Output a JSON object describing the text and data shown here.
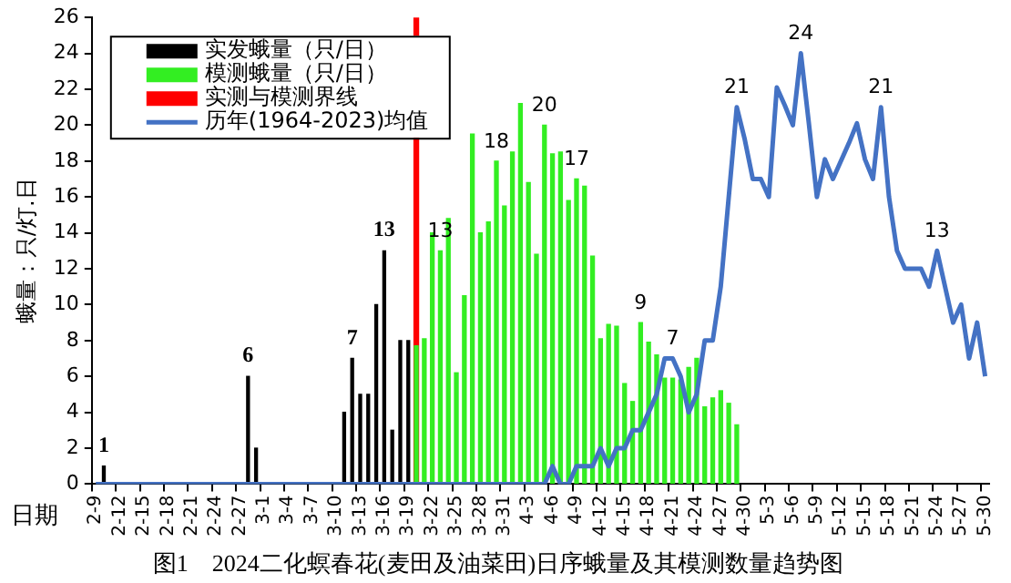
{
  "chart_data": {
    "type": "bar",
    "title": "图1　2024二化螟春花(麦田及油菜田)日序蛾量及其模测数量趋势图",
    "xlabel": "日期",
    "ylabel": "蛾量：只/灯.日",
    "categories": [
      "2-9",
      null,
      null,
      "2-12",
      null,
      null,
      "2-15",
      null,
      null,
      "2-18",
      null,
      null,
      "2-21",
      null,
      null,
      "2-24",
      null,
      null,
      "2-27",
      null,
      null,
      "3-1",
      null,
      null,
      "3-4",
      null,
      null,
      "3-7",
      null,
      null,
      "3-10",
      null,
      null,
      "3-13",
      null,
      null,
      "3-16",
      null,
      null,
      "3-19",
      null,
      null,
      "3-22",
      null,
      null,
      "3-25",
      null,
      null,
      "3-28",
      null,
      null,
      "3-31",
      null,
      null,
      "4-3",
      null,
      null,
      "4-6",
      null,
      null,
      "4-9",
      null,
      null,
      "4-12",
      null,
      null,
      "4-15",
      null,
      null,
      "4-18",
      null,
      null,
      "4-21",
      null,
      null,
      "4-24",
      null,
      null,
      "4-27",
      null,
      null,
      "4-30",
      null,
      null,
      "5-3",
      null,
      null,
      "5-6",
      null,
      null,
      "5-9",
      null,
      null,
      "5-12",
      null,
      null,
      "5-15",
      null,
      null,
      "5-18",
      null,
      null,
      "5-21",
      null,
      null,
      "5-24",
      null,
      null,
      "5-27",
      null,
      null,
      "5-30"
    ],
    "series": [
      {
        "name": "实发蛾量（只/日）",
        "color": "#000000",
        "values": [
          null,
          1,
          null,
          null,
          null,
          null,
          null,
          null,
          null,
          null,
          null,
          null,
          null,
          null,
          null,
          null,
          null,
          null,
          null,
          6,
          2,
          null,
          null,
          null,
          null,
          null,
          null,
          null,
          null,
          null,
          null,
          4,
          7,
          5,
          5,
          10,
          13,
          3,
          8,
          8,
          null,
          null,
          null,
          null,
          null,
          null,
          null,
          null,
          null,
          null,
          null,
          null,
          null,
          null,
          null,
          null,
          null,
          null,
          null,
          null,
          null,
          null,
          null,
          null,
          null,
          null,
          null,
          null,
          null,
          null,
          null,
          null,
          null,
          null,
          null,
          null,
          null,
          null,
          null,
          null,
          null,
          null,
          null,
          null,
          null,
          null,
          null,
          null,
          null,
          null,
          null,
          null,
          null,
          null,
          null,
          null,
          null,
          null,
          null,
          null,
          null,
          null,
          null,
          null,
          null,
          null,
          null,
          null,
          null,
          null,
          null,
          null
        ],
        "value_labels": [
          null,
          "1",
          null,
          null,
          null,
          null,
          null,
          null,
          null,
          null,
          null,
          null,
          null,
          null,
          null,
          null,
          null,
          null,
          null,
          "6",
          null,
          null,
          null,
          null,
          null,
          null,
          null,
          null,
          null,
          null,
          null,
          null,
          "7",
          null,
          null,
          null,
          "13",
          null,
          null,
          null,
          null,
          null,
          null,
          null,
          null,
          null,
          null,
          null,
          null,
          null,
          null,
          null,
          null,
          null,
          null,
          null,
          null,
          null,
          null,
          null,
          null,
          null,
          null,
          null,
          null,
          null,
          null,
          null,
          null,
          null,
          null,
          null,
          null,
          null,
          null,
          null,
          null,
          null,
          null,
          null,
          null,
          null,
          null,
          null,
          null,
          null,
          null,
          null,
          null,
          null,
          null,
          null,
          null,
          null,
          null,
          null,
          null,
          null,
          null,
          null,
          null,
          null,
          null,
          null,
          null,
          null,
          null,
          null,
          null,
          null,
          null,
          null
        ]
      },
      {
        "name": "模测蛾量（只/日）",
        "color": "#33ee22",
        "values": [
          null,
          null,
          null,
          null,
          null,
          null,
          null,
          null,
          null,
          null,
          null,
          null,
          null,
          null,
          null,
          null,
          null,
          null,
          null,
          null,
          null,
          null,
          null,
          null,
          null,
          null,
          null,
          null,
          null,
          null,
          null,
          null,
          null,
          null,
          null,
          null,
          null,
          null,
          null,
          null,
          7.7,
          8.1,
          14,
          13,
          14.8,
          6.2,
          10.5,
          19.5,
          14,
          14.6,
          18,
          15.5,
          18.5,
          21.2,
          16.8,
          12.8,
          20,
          18.4,
          18.5,
          15.8,
          17,
          16.6,
          12.7,
          8.1,
          8.9,
          8.8,
          5.6,
          4.6,
          9,
          7.9,
          7.2,
          5.9,
          5.9,
          5.8,
          6.5,
          7,
          4.3,
          4.8,
          5.2,
          4.5,
          3.3,
          null,
          null,
          null,
          null,
          null,
          null,
          null,
          null,
          null,
          null,
          null,
          null,
          null,
          null,
          null,
          null,
          null,
          null,
          null,
          null,
          null,
          null,
          null,
          null,
          null,
          null,
          null,
          null,
          null,
          null,
          null
        ],
        "value_labels": [
          null,
          null,
          null,
          null,
          null,
          null,
          null,
          null,
          null,
          null,
          null,
          null,
          null,
          null,
          null,
          null,
          null,
          null,
          null,
          null,
          null,
          null,
          null,
          null,
          null,
          null,
          null,
          null,
          null,
          null,
          null,
          null,
          null,
          null,
          null,
          null,
          null,
          null,
          null,
          null,
          null,
          null,
          null,
          "13",
          null,
          null,
          null,
          null,
          null,
          null,
          "18",
          null,
          null,
          null,
          null,
          null,
          "20",
          null,
          null,
          null,
          "17",
          null,
          null,
          null,
          null,
          null,
          null,
          null,
          "9",
          null,
          null,
          null,
          null,
          null,
          null,
          null,
          null,
          null,
          null,
          null,
          null,
          null,
          null,
          null,
          null,
          null,
          null,
          null,
          null,
          null,
          null,
          null,
          null,
          null,
          null,
          null,
          null,
          null,
          null,
          null,
          null,
          null,
          null,
          null,
          null,
          null,
          null,
          null,
          null,
          null,
          null,
          null
        ]
      },
      {
        "name": "实测与模测界线",
        "color": "#ff0000",
        "values": [
          null,
          null,
          null,
          null,
          null,
          null,
          null,
          null,
          null,
          null,
          null,
          null,
          null,
          null,
          null,
          null,
          null,
          null,
          null,
          null,
          null,
          null,
          null,
          null,
          null,
          null,
          null,
          null,
          null,
          null,
          null,
          null,
          null,
          null,
          null,
          null,
          null,
          null,
          null,
          null,
          26,
          null,
          null,
          null,
          null,
          null,
          null,
          null,
          null,
          null,
          null,
          null,
          null,
          null,
          null,
          null,
          null,
          null,
          null,
          null,
          null,
          null,
          null,
          null,
          null,
          null,
          null,
          null,
          null,
          null,
          null,
          null,
          null,
          null,
          null,
          null,
          null,
          null,
          null,
          null,
          null,
          null,
          null,
          null,
          null,
          null,
          null,
          null,
          null,
          null,
          null,
          null,
          null,
          null,
          null,
          null,
          null,
          null,
          null,
          null,
          null,
          null,
          null,
          null,
          null,
          null,
          null,
          null,
          null,
          null,
          null,
          null
        ]
      },
      {
        "name": "历年(1964-2023)均值",
        "type": "line",
        "color": "#4472c4",
        "values": [
          0,
          0,
          0,
          0,
          0,
          0,
          0,
          0,
          0,
          0,
          0,
          0,
          0,
          0,
          0,
          0,
          0,
          0,
          0,
          0,
          0,
          0,
          0,
          0,
          0,
          0,
          0,
          0,
          0,
          0,
          0,
          0,
          0,
          0,
          0,
          0,
          0,
          0,
          0,
          0,
          0,
          0,
          0,
          0,
          0,
          0,
          0,
          0,
          0,
          0,
          0,
          0,
          0,
          0,
          0,
          0,
          0,
          1,
          0,
          0,
          1,
          1,
          1,
          2,
          1,
          2,
          2,
          3,
          3,
          4,
          5,
          7,
          7,
          6,
          4,
          5,
          8,
          8,
          11,
          16,
          21,
          19.2,
          17,
          17,
          16,
          22.1,
          21.1,
          20,
          24,
          20.1,
          16,
          18.1,
          17,
          18,
          19,
          20.1,
          18.1,
          17,
          21,
          16,
          13,
          12,
          12,
          12,
          11,
          13,
          11,
          9,
          10,
          7,
          9,
          6
        ],
        "value_labels": [
          null,
          null,
          null,
          null,
          null,
          null,
          null,
          null,
          null,
          null,
          null,
          null,
          null,
          null,
          null,
          null,
          null,
          null,
          null,
          null,
          null,
          null,
          null,
          null,
          null,
          null,
          null,
          null,
          null,
          null,
          null,
          null,
          null,
          null,
          null,
          null,
          null,
          null,
          null,
          null,
          null,
          null,
          null,
          null,
          null,
          null,
          null,
          null,
          null,
          null,
          null,
          null,
          null,
          null,
          null,
          null,
          null,
          null,
          null,
          null,
          null,
          null,
          null,
          null,
          null,
          null,
          null,
          null,
          null,
          null,
          null,
          null,
          "7",
          null,
          null,
          null,
          null,
          null,
          null,
          null,
          "21",
          null,
          null,
          null,
          null,
          null,
          null,
          null,
          "24",
          null,
          null,
          null,
          null,
          null,
          null,
          null,
          null,
          null,
          "21",
          null,
          null,
          null,
          null,
          null,
          null,
          "13",
          null,
          null,
          null,
          null,
          null,
          null
        ]
      }
    ],
    "ylim": [
      0,
      26
    ],
    "yticks": [
      0,
      2,
      4,
      6,
      8,
      10,
      12,
      14,
      16,
      18,
      20,
      22,
      24,
      26
    ],
    "grid": false,
    "legend": "top left",
    "marker": "none",
    "line_style": "solid"
  }
}
